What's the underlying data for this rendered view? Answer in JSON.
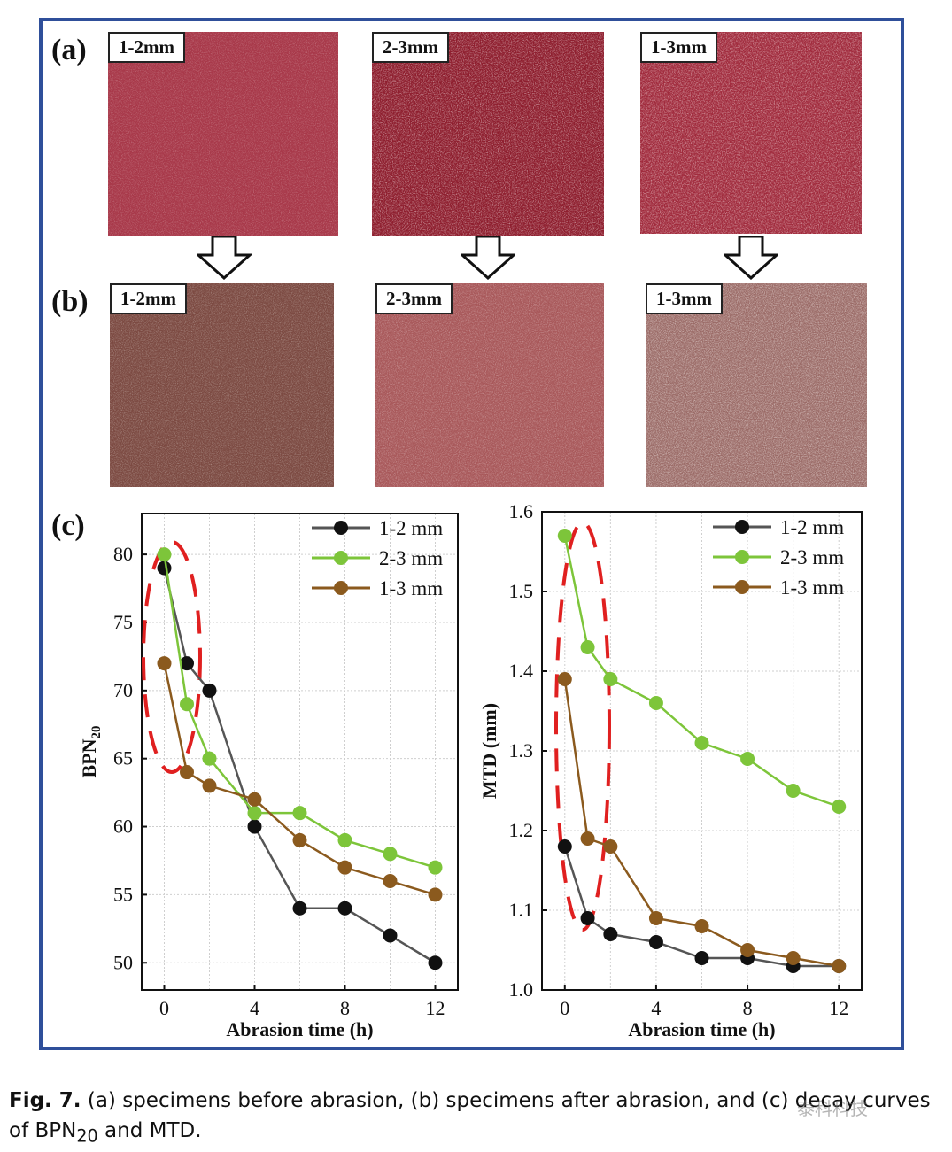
{
  "panels": {
    "a": {
      "letter": "(a)",
      "labels": [
        "1-2mm",
        "2-3mm",
        "1-3mm"
      ]
    },
    "b": {
      "letter": "(b)",
      "labels": [
        "1-2mm",
        "2-3mm",
        "1-3mm"
      ]
    },
    "c": {
      "letter": "(c)"
    }
  },
  "chart_data": [
    {
      "type": "line",
      "xlabel": "Abrasion time (h)",
      "ylabel": "BPN20",
      "xlim": [
        -1,
        13
      ],
      "ylim": [
        48,
        83
      ],
      "xticks": [
        0,
        4,
        8,
        12
      ],
      "yticks": [
        50,
        55,
        60,
        65,
        70,
        75,
        80
      ],
      "grid": true,
      "legend": "top-right",
      "series": [
        {
          "name": "1-2 mm",
          "color": "#111111",
          "x": [
            0,
            1,
            2,
            4,
            6,
            8,
            10,
            12
          ],
          "y": [
            79,
            72,
            70,
            60,
            54,
            54,
            52,
            50
          ]
        },
        {
          "name": "2-3 mm",
          "color": "#7dc53a",
          "x": [
            0,
            1,
            2,
            4,
            6,
            8,
            10,
            12
          ],
          "y": [
            80,
            69,
            65,
            61,
            61,
            59,
            58,
            57
          ]
        },
        {
          "name": "1-3 mm",
          "color": "#8b5a1e",
          "x": [
            0,
            1,
            2,
            4,
            6,
            8,
            10,
            12
          ],
          "y": [
            72,
            64,
            63,
            62,
            59,
            57,
            56,
            55
          ]
        }
      ]
    },
    {
      "type": "line",
      "xlabel": "Abrasion time (h)",
      "ylabel": "MTD (mm)",
      "xlim": [
        -1,
        13
      ],
      "ylim": [
        1.0,
        1.6
      ],
      "xticks": [
        0,
        4,
        8,
        12
      ],
      "yticks": [
        1.0,
        1.1,
        1.2,
        1.3,
        1.4,
        1.5,
        1.6
      ],
      "grid": true,
      "legend": "top-right",
      "series": [
        {
          "name": "1-2 mm",
          "color": "#111111",
          "x": [
            0,
            1,
            2,
            4,
            6,
            8,
            10,
            12
          ],
          "y": [
            1.18,
            1.09,
            1.07,
            1.06,
            1.04,
            1.04,
            1.03,
            1.03
          ]
        },
        {
          "name": "2-3 mm",
          "color": "#7dc53a",
          "x": [
            0,
            1,
            2,
            4,
            6,
            8,
            10,
            12
          ],
          "y": [
            1.57,
            1.43,
            1.39,
            1.36,
            1.31,
            1.29,
            1.25,
            1.23
          ]
        },
        {
          "name": "1-3 mm",
          "color": "#8b5a1e",
          "x": [
            0,
            1,
            2,
            4,
            6,
            8,
            10,
            12
          ],
          "y": [
            1.39,
            1.19,
            1.18,
            1.09,
            1.08,
            1.05,
            1.04,
            1.03
          ]
        }
      ]
    }
  ],
  "caption": {
    "label": "Fig. 7.",
    "text_1": " (a) specimens before abrasion, (b) specimens after abrasion, and (c) decay curves of BPN",
    "sub": "20",
    "text_2": " and MTD."
  },
  "watermark": "泰科科技",
  "colors": {
    "frame": "#2f4f9a",
    "ellipse": "#e02020"
  }
}
